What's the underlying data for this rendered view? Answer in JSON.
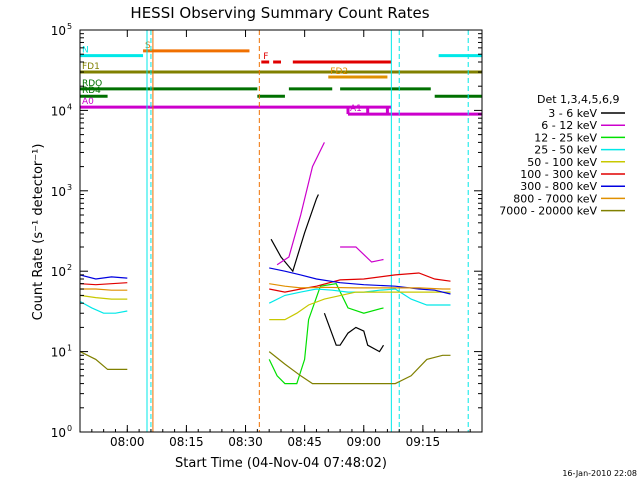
{
  "chart_data": {
    "type": "line",
    "title": "HESSI Observing Summary Count Rates",
    "xlabel": "Start Time (04-Nov-04 07:48:02)",
    "ylabel": "Count Rate (s⁻¹ detector⁻¹)",
    "yscale": "log",
    "xlim_minutes": [
      0,
      102
    ],
    "ylim": [
      1,
      100000
    ],
    "x_ticks": [
      {
        "t": 12,
        "label": "08:00"
      },
      {
        "t": 27,
        "label": "08:15"
      },
      {
        "t": 42,
        "label": "08:30"
      },
      {
        "t": 57,
        "label": "08:45"
      },
      {
        "t": 72,
        "label": "09:00"
      },
      {
        "t": 87,
        "label": "09:15"
      }
    ],
    "y_ticks": [
      {
        "v": 1,
        "base": "10",
        "exp": "0"
      },
      {
        "v": 10,
        "base": "10",
        "exp": "1"
      },
      {
        "v": 100,
        "base": "10",
        "exp": "2"
      },
      {
        "v": 1000,
        "base": "10",
        "exp": "3"
      },
      {
        "v": 10000,
        "base": "10",
        "exp": "4"
      },
      {
        "v": 100000,
        "base": "10",
        "exp": "5"
      }
    ],
    "legend_title": "Det 1,3,4,5,6,9",
    "legend_position": "right",
    "series": [
      {
        "name": "3 - 6 keV",
        "color": "#000000",
        "segments": [
          {
            "points": [
              [
                48.5,
                250
              ],
              [
                51,
                150
              ],
              [
                54,
                100
              ],
              [
                57,
                300
              ],
              [
                60,
                800
              ],
              [
                60.5,
                900
              ]
            ]
          },
          {
            "points": [
              [
                62,
                30
              ],
              [
                65,
                12
              ],
              [
                66,
                12
              ],
              [
                68,
                17
              ],
              [
                70,
                20
              ],
              [
                72,
                18
              ],
              [
                73,
                12
              ],
              [
                76,
                10
              ],
              [
                77,
                12
              ]
            ]
          }
        ]
      },
      {
        "name": "6 - 12 keV",
        "color": "#cc00cc",
        "segments": [
          {
            "points": [
              [
                50,
                120
              ],
              [
                53,
                150
              ],
              [
                56,
                500
              ],
              [
                59,
                2000
              ],
              [
                62,
                4000
              ]
            ]
          },
          {
            "points": [
              [
                66,
                200
              ],
              [
                70,
                200
              ],
              [
                74,
                130
              ],
              [
                77,
                140
              ]
            ]
          }
        ]
      },
      {
        "name": "12 - 25 keV",
        "color": "#00e000",
        "segments": [
          {
            "points": [
              [
                48,
                8
              ],
              [
                50,
                5
              ],
              [
                52,
                4
              ],
              [
                55,
                4
              ],
              [
                57,
                8
              ],
              [
                58,
                25
              ],
              [
                61,
                65
              ],
              [
                65,
                70
              ],
              [
                68,
                35
              ],
              [
                72,
                30
              ],
              [
                77,
                35
              ]
            ]
          }
        ]
      },
      {
        "name": "25 - 50 keV",
        "color": "#00e8e8",
        "segments": [
          {
            "points": [
              [
                0,
                42
              ],
              [
                3,
                35
              ],
              [
                6,
                30
              ],
              [
                9,
                30
              ],
              [
                12,
                32
              ]
            ]
          },
          {
            "points": [
              [
                48,
                40
              ],
              [
                52,
                50
              ],
              [
                56,
                55
              ],
              [
                60,
                60
              ],
              [
                64,
                58
              ],
              [
                68,
                55
              ],
              [
                72,
                55
              ],
              [
                76,
                58
              ],
              [
                80,
                60
              ],
              [
                84,
                45
              ],
              [
                88,
                38
              ],
              [
                92,
                38
              ],
              [
                94,
                38
              ]
            ]
          }
        ]
      },
      {
        "name": "50 - 100 keV",
        "color": "#c8c800",
        "segments": [
          {
            "points": [
              [
                0,
                50
              ],
              [
                4,
                47
              ],
              [
                8,
                45
              ],
              [
                12,
                45
              ]
            ]
          },
          {
            "points": [
              [
                48,
                25
              ],
              [
                52,
                25
              ],
              [
                55,
                30
              ],
              [
                58,
                38
              ],
              [
                62,
                45
              ],
              [
                70,
                55
              ],
              [
                78,
                55
              ],
              [
                86,
                55
              ],
              [
                92,
                55
              ],
              [
                94,
                55
              ]
            ]
          }
        ]
      },
      {
        "name": "100 - 300 keV",
        "color": "#e00000",
        "segments": [
          {
            "points": [
              [
                0,
                70
              ],
              [
                4,
                68
              ],
              [
                8,
                70
              ],
              [
                12,
                72
              ]
            ]
          },
          {
            "points": [
              [
                48,
                60
              ],
              [
                52,
                55
              ],
              [
                56,
                60
              ],
              [
                60,
                65
              ],
              [
                66,
                78
              ],
              [
                72,
                80
              ],
              [
                80,
                90
              ],
              [
                86,
                95
              ],
              [
                90,
                80
              ],
              [
                94,
                75
              ]
            ]
          }
        ]
      },
      {
        "name": "300 - 800 keV",
        "color": "#0000e0",
        "segments": [
          {
            "points": [
              [
                0,
                90
              ],
              [
                4,
                80
              ],
              [
                8,
                85
              ],
              [
                12,
                82
              ]
            ]
          },
          {
            "points": [
              [
                48,
                110
              ],
              [
                52,
                100
              ],
              [
                56,
                90
              ],
              [
                60,
                80
              ],
              [
                66,
                72
              ],
              [
                72,
                68
              ],
              [
                80,
                65
              ],
              [
                86,
                60
              ],
              [
                90,
                58
              ],
              [
                94,
                52
              ]
            ]
          }
        ]
      },
      {
        "name": "800 - 7000 keV",
        "color": "#e09000",
        "segments": [
          {
            "points": [
              [
                0,
                60
              ],
              [
                4,
                60
              ],
              [
                8,
                58
              ],
              [
                12,
                58
              ]
            ]
          },
          {
            "points": [
              [
                48,
                70
              ],
              [
                52,
                65
              ],
              [
                56,
                62
              ],
              [
                62,
                63
              ],
              [
                70,
                62
              ],
              [
                78,
                62
              ],
              [
                86,
                62
              ],
              [
                92,
                60
              ],
              [
                94,
                60
              ]
            ]
          }
        ]
      },
      {
        "name": "7000 - 20000 keV",
        "color": "#808000",
        "segments": [
          {
            "points": [
              [
                0,
                10
              ],
              [
                4,
                8
              ],
              [
                7,
                6
              ],
              [
                12,
                6
              ]
            ]
          },
          {
            "points": [
              [
                48,
                10
              ],
              [
                52,
                7
              ],
              [
                56,
                5
              ],
              [
                59,
                4
              ],
              [
                62,
                4
              ],
              [
                70,
                4
              ],
              [
                80,
                4
              ],
              [
                84,
                5
              ],
              [
                88,
                8
              ],
              [
                92,
                9
              ],
              [
                94,
                9
              ]
            ]
          }
        ]
      }
    ],
    "flag_bars": [
      {
        "label": "S",
        "color": "#f07000",
        "y": 55000,
        "x0": 16,
        "x1": 43
      },
      {
        "label": "N",
        "color": "#00e8e8",
        "y": 48000,
        "x0": 0,
        "x1": 16
      },
      {
        "label": "",
        "color": "#00e8e8",
        "y": 48000,
        "x0": 91,
        "x1": 102
      },
      {
        "label": "F",
        "color": "#e00000",
        "y": 40000,
        "x0": 46,
        "x1": 48
      },
      {
        "label": "",
        "color": "#e00000",
        "y": 40000,
        "x0": 49,
        "x1": 51
      },
      {
        "label": "",
        "color": "#e00000",
        "y": 40000,
        "x0": 54,
        "x1": 79
      },
      {
        "label": "FD1",
        "color": "#808000",
        "y": 30000,
        "x0": 0,
        "x1": 102
      },
      {
        "label": "FD2",
        "color": "#e09000",
        "y": 26000,
        "x0": 63,
        "x1": 78
      },
      {
        "label": "RDO",
        "color": "#007000",
        "y": 18500,
        "x0": 0,
        "x1": 45
      },
      {
        "label": "",
        "color": "#007000",
        "y": 18500,
        "x0": 53,
        "x1": 64
      },
      {
        "label": "",
        "color": "#007000",
        "y": 18500,
        "x0": 66,
        "x1": 89
      },
      {
        "label": "RD4",
        "color": "#007000",
        "y": 15000,
        "x0": 0,
        "x1": 7
      },
      {
        "label": "",
        "color": "#007000",
        "y": 15000,
        "x0": 45,
        "x1": 52
      },
      {
        "label": "",
        "color": "#007000",
        "y": 15000,
        "x0": 90,
        "x1": 102
      },
      {
        "label": "A0",
        "color": "#cc00cc",
        "y": 11000,
        "x0": 0,
        "x1": 79
      },
      {
        "label": "A1",
        "color": "#cc00cc",
        "y": 9000,
        "x0": 68,
        "x1": 102
      }
    ],
    "attenuator_spikes": [
      {
        "t": 68,
        "color": "#cc00cc"
      },
      {
        "t": 73,
        "color": "#cc00cc"
      },
      {
        "t": 78,
        "color": "#cc00cc"
      }
    ],
    "vertical_lines": [
      {
        "t": 17,
        "color": "#00e8e8",
        "style": "solid"
      },
      {
        "t": 18,
        "color": "#00e8e8",
        "style": "dashed"
      },
      {
        "t": 18.5,
        "color": "#f07000",
        "style": "solid"
      },
      {
        "t": 45.5,
        "color": "#f07000",
        "style": "dashed"
      },
      {
        "t": 79,
        "color": "#00e8e8",
        "style": "solid"
      },
      {
        "t": 81,
        "color": "#00e8e8",
        "style": "dashed"
      },
      {
        "t": 98.5,
        "color": "#00e8e8",
        "style": "dashed"
      }
    ],
    "gaps": [
      [
        12.5,
        47.5
      ],
      [
        78.5,
        79.5
      ]
    ],
    "timestamp": "16-Jan-2010 22:08"
  }
}
